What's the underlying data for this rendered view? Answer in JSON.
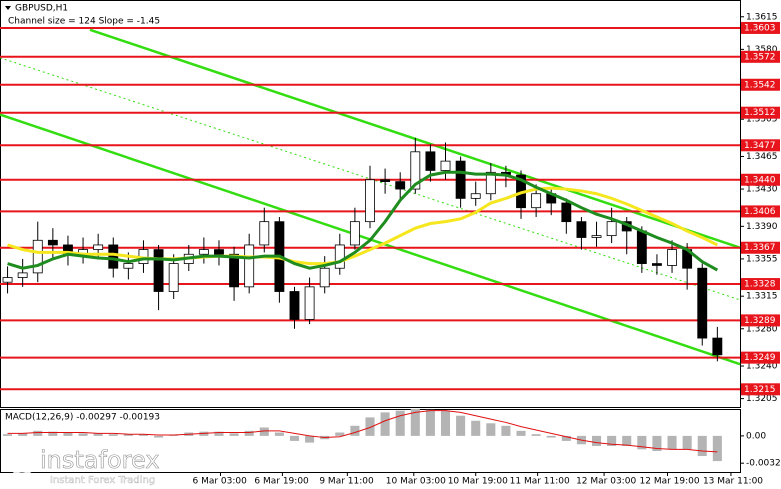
{
  "chart_data": [
    {
      "type": "candlestick",
      "title": "GBPUSD,H1",
      "subtitle": "Channel size = 124 Slope = -1.45",
      "xlim": [
        0,
        49
      ],
      "ylim": [
        1.3196,
        1.3633
      ],
      "yticks": [
        1.3615,
        {
          "value": 1.358,
          "label": "1.3580"
        },
        1.3505,
        1.3465,
        {
          "value": 1.343,
          "label": "1.3430"
        },
        {
          "value": 1.339,
          "label": "1.3390"
        },
        1.3355,
        1.3315,
        {
          "value": 1.328,
          "label": "1.3280"
        },
        {
          "value": 1.324,
          "label": "1.3240"
        },
        1.3205
      ],
      "xticks": [
        {
          "value": 14.6,
          "label": "6 Mar 03:00"
        },
        {
          "value": 18.7,
          "label": "6 Mar 19:00"
        },
        {
          "value": 23,
          "label": "9 Mar 11:00"
        },
        {
          "value": 27.4,
          "label": "10 Mar 03:00"
        },
        {
          "value": 31.5,
          "label": "10 Mar 19:00"
        },
        {
          "value": 35.6,
          "label": "11 Mar 11:00"
        },
        {
          "value": 40,
          "label": "12 Mar 03:00"
        },
        {
          "value": 44.2,
          "label": "12 Mar 19:00"
        },
        {
          "value": 48.4,
          "label": "13 Mar 11:00"
        }
      ],
      "open": [
        1.333,
        1.3335,
        1.334,
        1.3375,
        1.337,
        1.336,
        1.3365,
        1.337,
        1.3345,
        1.335,
        1.3365,
        1.332,
        1.335,
        1.336,
        1.3365,
        1.336,
        1.3325,
        1.337,
        1.3395,
        1.332,
        1.329,
        1.3325,
        1.3345,
        1.337,
        1.3395,
        1.344,
        1.3438,
        1.343,
        1.347,
        1.345,
        1.346,
        1.342,
        1.3425,
        1.3448,
        1.3445,
        1.341,
        1.3425,
        1.3415,
        1.3395,
        1.3378,
        1.338,
        1.3395,
        1.3385,
        1.335,
        1.3348,
        1.3365,
        1.3345,
        1.327
      ],
      "high": [
        1.3347,
        1.3355,
        1.3395,
        1.3388,
        1.338,
        1.3378,
        1.3382,
        1.3378,
        1.3362,
        1.3375,
        1.337,
        1.336,
        1.337,
        1.3378,
        1.3375,
        1.3368,
        1.3382,
        1.341,
        1.34,
        1.3325,
        1.3335,
        1.3358,
        1.3382,
        1.341,
        1.3455,
        1.3452,
        1.3448,
        1.3485,
        1.3478,
        1.348,
        1.3465,
        1.3438,
        1.3458,
        1.3455,
        1.345,
        1.3435,
        1.343,
        1.342,
        1.34,
        1.3395,
        1.341,
        1.34,
        1.339,
        1.336,
        1.3375,
        1.3372,
        1.335,
        1.3282
      ],
      "low": [
        1.3318,
        1.3325,
        1.333,
        1.3355,
        1.3348,
        1.335,
        1.3355,
        1.3335,
        1.3333,
        1.334,
        1.33,
        1.3312,
        1.3342,
        1.335,
        1.3348,
        1.331,
        1.3318,
        1.3362,
        1.3308,
        1.328,
        1.3285,
        1.3318,
        1.3338,
        1.3365,
        1.3388,
        1.3425,
        1.3418,
        1.3425,
        1.3438,
        1.344,
        1.341,
        1.3412,
        1.3418,
        1.3432,
        1.3398,
        1.34,
        1.3402,
        1.3382,
        1.3365,
        1.3368,
        1.3372,
        1.336,
        1.334,
        1.3338,
        1.334,
        1.3322,
        1.3262,
        1.3245
      ],
      "close": [
        1.3335,
        1.334,
        1.3375,
        1.337,
        1.336,
        1.3365,
        1.337,
        1.3345,
        1.335,
        1.3365,
        1.332,
        1.335,
        1.336,
        1.3365,
        1.336,
        1.3325,
        1.337,
        1.3395,
        1.332,
        1.329,
        1.3325,
        1.3345,
        1.337,
        1.3395,
        1.344,
        1.3438,
        1.343,
        1.347,
        1.345,
        1.346,
        1.342,
        1.3425,
        1.3448,
        1.3445,
        1.341,
        1.3425,
        1.3415,
        1.3395,
        1.3378,
        1.338,
        1.3395,
        1.3385,
        1.335,
        1.3348,
        1.3365,
        1.3345,
        1.327,
        1.3252
      ],
      "lines": [
        {
          "color": "#f5e61e",
          "values": [
            1.337,
            1.3365,
            1.3362,
            1.3362,
            1.3362,
            1.336,
            1.336,
            1.336,
            1.3358,
            1.3356,
            1.3355,
            1.3355,
            1.3356,
            1.3357,
            1.3358,
            1.3358,
            1.3357,
            1.3357,
            1.3356,
            1.3352,
            1.335,
            1.335,
            1.3352,
            1.3358,
            1.3365,
            1.3372,
            1.338,
            1.3388,
            1.3393,
            1.3395,
            1.3398,
            1.3405,
            1.3415,
            1.342,
            1.3426,
            1.343,
            1.3431,
            1.343,
            1.3428,
            1.3425,
            1.342,
            1.3414,
            1.3407,
            1.34,
            1.3393,
            1.3385,
            1.3378,
            1.337
          ]
        },
        {
          "color": "#1e8c1e",
          "values": [
            1.335,
            1.3345,
            1.3348,
            1.3355,
            1.336,
            1.3358,
            1.3356,
            1.3355,
            1.3352,
            1.3355,
            1.3355,
            1.3354,
            1.3356,
            1.3358,
            1.3358,
            1.3357,
            1.3356,
            1.3358,
            1.3358,
            1.335,
            1.3345,
            1.3348,
            1.3352,
            1.3362,
            1.3375,
            1.3395,
            1.3418,
            1.3435,
            1.3445,
            1.3448,
            1.3448,
            1.3446,
            1.3446,
            1.3445,
            1.344,
            1.3432,
            1.3425,
            1.3418,
            1.341,
            1.3403,
            1.3398,
            1.3392,
            1.3385,
            1.3378,
            1.3372,
            1.3365,
            1.3352,
            1.3343
          ]
        }
      ],
      "trend_lines": [
        {
          "color": "#33dd11",
          "style": "solid",
          "from": [
            5.96,
            1.3601
          ],
          "to": [
            49,
            1.3367
          ]
        },
        {
          "color": "#33dd11",
          "style": "solid",
          "from": [
            0,
            1.351
          ],
          "to": [
            49,
            1.3242
          ]
        },
        {
          "color": "#33dd11",
          "style": "dotted",
          "from": [
            0,
            1.3571
          ],
          "to": [
            49,
            1.3311
          ]
        }
      ],
      "levels": {
        "color": "#e8141c",
        "values": [
          1.3603,
          1.3572,
          1.3542,
          1.3512,
          1.3477,
          {
            "value": 1.344,
            "label": "1.3440"
          },
          1.3406,
          1.3367,
          1.3328,
          1.3289,
          1.3249,
          1.3215
        ]
      }
    },
    {
      "type": "macd",
      "title": "MACD(12,26,9) -0.00297 -0.00193",
      "xlim": [
        0,
        49
      ],
      "ylim": [
        -0.0043,
        0.0032
      ],
      "yticks": [
        {
          "value": 0,
          "label": "0.00"
        },
        -0.00325
      ],
      "histogram": {
        "color": "#b4b4b4",
        "values": [
          0.0002,
          0.0003,
          0.0006,
          0.0005,
          0.0004,
          0.0003,
          0.0003,
          0.0002,
          0.0002,
          0.0002,
          -0.0002,
          0.0001,
          0.0004,
          0.0005,
          0.0005,
          0.0003,
          0.0006,
          0.001,
          0.0004,
          -0.0006,
          -0.0008,
          -0.0004,
          0.0004,
          0.0012,
          0.0022,
          0.0028,
          0.003,
          0.0032,
          0.0031,
          0.003,
          0.0024,
          0.0018,
          0.0015,
          0.0012,
          0.0006,
          0.0002,
          -0.0002,
          -0.0006,
          -0.001,
          -0.0012,
          -0.0012,
          -0.0012,
          -0.0016,
          -0.0018,
          -0.0016,
          -0.0016,
          -0.0024,
          -0.003
        ]
      },
      "signal": {
        "color": "#e01010",
        "values": [
          0.0003,
          0.0003,
          0.0004,
          0.0004,
          0.0004,
          0.0004,
          0.0003,
          0.0003,
          0.0002,
          0.0002,
          0.0001,
          0.0001,
          0.0002,
          0.0003,
          0.0004,
          0.0004,
          0.0004,
          0.0006,
          0.0006,
          0.0003,
          0,
          -0.0002,
          -0.0001,
          0.0004,
          0.001,
          0.0018,
          0.0024,
          0.0028,
          0.003,
          0.003,
          0.0028,
          0.0024,
          0.002,
          0.0016,
          0.0011,
          0.0007,
          0.0003,
          -0.0001,
          -0.0005,
          -0.0008,
          -0.001,
          -0.0011,
          -0.0013,
          -0.0015,
          -0.0016,
          -0.0016,
          -0.0018,
          -0.0019
        ]
      }
    }
  ],
  "watermark": {
    "brand": "instaforex",
    "tagline": "Instant Forex Trading"
  }
}
